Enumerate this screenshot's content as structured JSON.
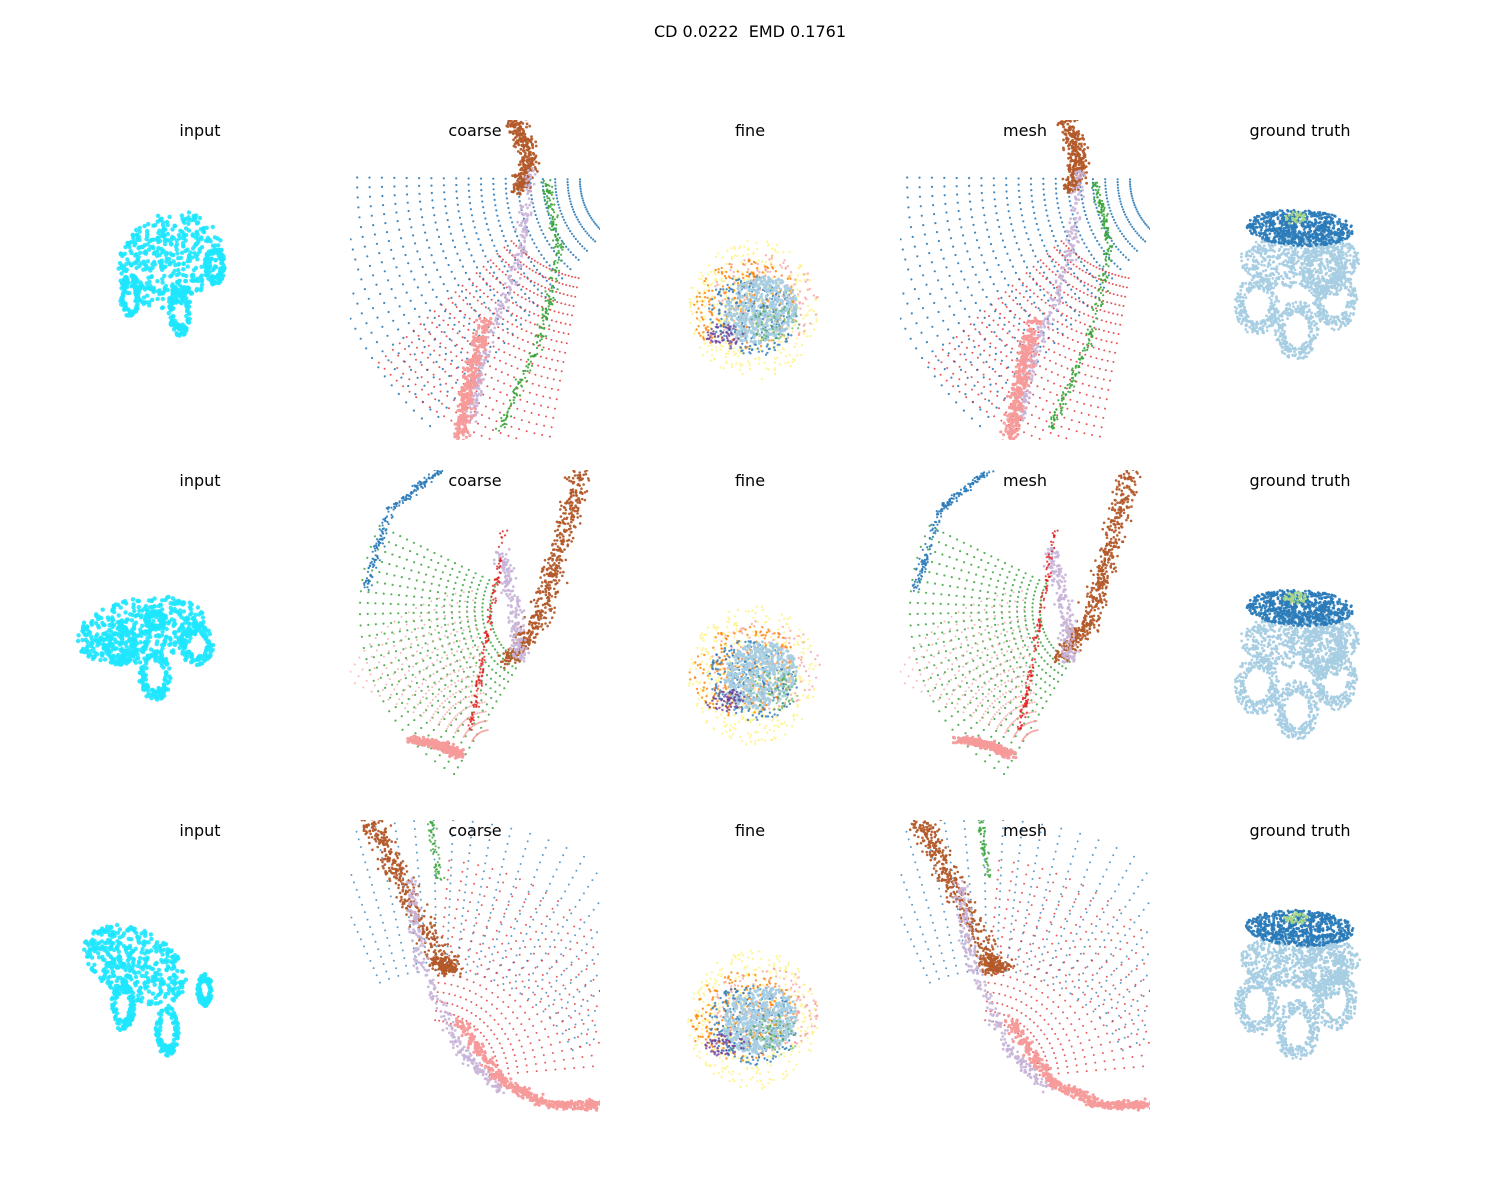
{
  "title": "CD 0.0222  EMD 0.1761",
  "colors": {
    "input": "#1ee6ff",
    "brown": "#b35a2a",
    "pink": "#f59a9a",
    "lavender": "#c8b4d8",
    "blue": "#2b7bb9",
    "lightblue": "#a6cde3",
    "green": "#3aa53a",
    "red": "#e31a1c",
    "orange": "#ff7f00",
    "yellow": "#fff38a",
    "purple": "#6a3d9a",
    "lightgreen": "#a8d78a"
  },
  "rows": [
    {
      "panels": [
        {
          "title": "input",
          "kind": "input",
          "pose": 0
        },
        {
          "title": "coarse",
          "kind": "coarse",
          "pose": 0
        },
        {
          "title": "fine",
          "kind": "fine",
          "pose": 0
        },
        {
          "title": "mesh",
          "kind": "mesh",
          "pose": 0
        },
        {
          "title": "ground truth",
          "kind": "gt",
          "pose": 0
        }
      ]
    },
    {
      "panels": [
        {
          "title": "input",
          "kind": "input",
          "pose": 1
        },
        {
          "title": "coarse",
          "kind": "coarse",
          "pose": 1
        },
        {
          "title": "fine",
          "kind": "fine",
          "pose": 1
        },
        {
          "title": "mesh",
          "kind": "mesh",
          "pose": 1
        },
        {
          "title": "ground truth",
          "kind": "gt",
          "pose": 1
        }
      ]
    },
    {
      "panels": [
        {
          "title": "input",
          "kind": "input",
          "pose": 2
        },
        {
          "title": "coarse",
          "kind": "coarse",
          "pose": 2
        },
        {
          "title": "fine",
          "kind": "fine",
          "pose": 2
        },
        {
          "title": "mesh",
          "kind": "mesh",
          "pose": 2
        },
        {
          "title": "ground truth",
          "kind": "gt",
          "pose": 2
        }
      ]
    }
  ],
  "chart_data": {
    "type": "scatter",
    "title": "CD 0.0222  EMD 0.1761",
    "metrics": {
      "CD": 0.0222,
      "EMD": 0.1761
    },
    "columns": [
      "input",
      "coarse",
      "fine",
      "mesh",
      "ground truth"
    ],
    "rows": 3,
    "grid": false,
    "axes_visible": false,
    "description_of_marks": "3D point clouds of a toy monster truck rendered as colored scatter points per panel"
  }
}
